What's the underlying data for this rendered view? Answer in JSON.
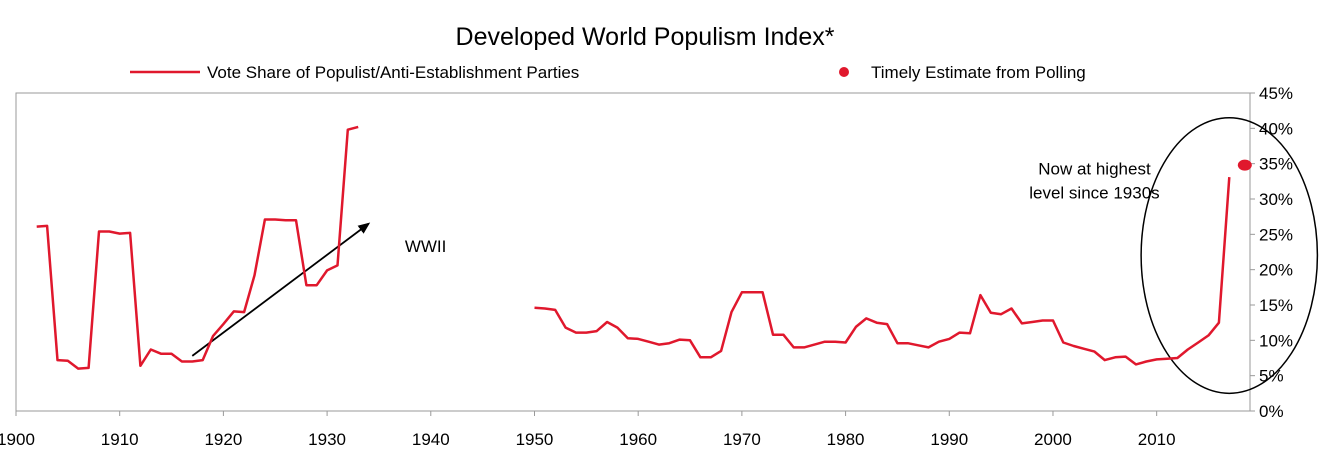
{
  "chart_data": {
    "type": "line",
    "title": "Developed World Populism Index*",
    "xlabel": "",
    "ylabel": "",
    "xlim": [
      1900,
      2019
    ],
    "ylim": [
      0,
      45
    ],
    "x_ticks": [
      "1900",
      "1910",
      "1920",
      "1930",
      "1940",
      "1950",
      "1960",
      "1970",
      "1980",
      "1990",
      "2000",
      "2010"
    ],
    "x_tick_values": [
      1900,
      1910,
      1920,
      1930,
      1940,
      1950,
      1960,
      1970,
      1980,
      1990,
      2000,
      2010
    ],
    "y_ticks": [
      "0%",
      "5%",
      "10%",
      "15%",
      "20%",
      "25%",
      "30%",
      "35%",
      "40%",
      "45%"
    ],
    "y_tick_values": [
      0,
      5,
      10,
      15,
      20,
      25,
      30,
      35,
      40,
      45
    ],
    "grid": false,
    "legend_position": "top",
    "series": [
      {
        "name": "Vote Share of Populist/Anti-Establishment Parties",
        "color": "#e0182d",
        "segments": [
          [
            [
              1902,
              26.1
            ],
            [
              1903,
              26.2
            ],
            [
              1904,
              7.2
            ],
            [
              1905,
              7.1
            ],
            [
              1906,
              6.0
            ],
            [
              1907,
              6.1
            ],
            [
              1908,
              25.4
            ],
            [
              1909,
              25.4
            ],
            [
              1910,
              25.1
            ],
            [
              1911,
              25.2
            ],
            [
              1912,
              6.4
            ],
            [
              1913,
              8.7
            ],
            [
              1914,
              8.1
            ],
            [
              1915,
              8.1
            ],
            [
              1916,
              7.0
            ],
            [
              1917,
              7.0
            ],
            [
              1918,
              7.2
            ],
            [
              1919,
              10.6
            ],
            [
              1920,
              12.3
            ],
            [
              1921,
              14.1
            ],
            [
              1922,
              14.0
            ],
            [
              1923,
              19.2
            ],
            [
              1924,
              27.1
            ],
            [
              1925,
              27.1
            ],
            [
              1926,
              27.0
            ],
            [
              1927,
              27.0
            ],
            [
              1928,
              17.8
            ],
            [
              1929,
              17.8
            ],
            [
              1930,
              19.9
            ],
            [
              1931,
              20.6
            ],
            [
              1932,
              39.8
            ],
            [
              1933,
              40.2
            ]
          ],
          [
            [
              1950,
              14.6
            ],
            [
              1951,
              14.5
            ],
            [
              1952,
              14.3
            ],
            [
              1953,
              11.8
            ],
            [
              1954,
              11.1
            ],
            [
              1955,
              11.1
            ],
            [
              1956,
              11.3
            ],
            [
              1957,
              12.6
            ],
            [
              1958,
              11.8
            ],
            [
              1959,
              10.3
            ],
            [
              1960,
              10.2
            ],
            [
              1961,
              9.8
            ],
            [
              1962,
              9.4
            ],
            [
              1963,
              9.6
            ],
            [
              1964,
              10.1
            ],
            [
              1965,
              10.0
            ],
            [
              1966,
              7.6
            ],
            [
              1967,
              7.6
            ],
            [
              1968,
              8.5
            ],
            [
              1969,
              14.0
            ],
            [
              1970,
              16.8
            ],
            [
              1971,
              16.8
            ],
            [
              1972,
              16.8
            ],
            [
              1973,
              10.8
            ],
            [
              1974,
              10.8
            ],
            [
              1975,
              9.0
            ],
            [
              1976,
              9.0
            ],
            [
              1977,
              9.4
            ],
            [
              1978,
              9.8
            ],
            [
              1979,
              9.8
            ],
            [
              1980,
              9.7
            ],
            [
              1981,
              11.9
            ],
            [
              1982,
              13.1
            ],
            [
              1983,
              12.5
            ],
            [
              1984,
              12.3
            ],
            [
              1985,
              9.6
            ],
            [
              1986,
              9.6
            ],
            [
              1987,
              9.3
            ],
            [
              1988,
              9.0
            ],
            [
              1989,
              9.8
            ],
            [
              1990,
              10.2
            ],
            [
              1991,
              11.1
            ],
            [
              1992,
              11.0
            ],
            [
              1993,
              16.4
            ],
            [
              1994,
              13.9
            ],
            [
              1995,
              13.7
            ],
            [
              1996,
              14.5
            ],
            [
              1997,
              12.4
            ],
            [
              1998,
              12.6
            ],
            [
              1999,
              12.8
            ],
            [
              2000,
              12.8
            ],
            [
              2001,
              9.7
            ],
            [
              2002,
              9.2
            ],
            [
              2003,
              8.8
            ],
            [
              2004,
              8.4
            ],
            [
              2005,
              7.2
            ],
            [
              2006,
              7.6
            ],
            [
              2007,
              7.7
            ],
            [
              2008,
              6.6
            ],
            [
              2009,
              7.0
            ],
            [
              2010,
              7.3
            ],
            [
              2011,
              7.4
            ],
            [
              2012,
              7.5
            ],
            [
              2013,
              8.7
            ],
            [
              2014,
              9.7
            ],
            [
              2015,
              10.7
            ],
            [
              2016,
              12.5
            ],
            [
              2017,
              33.1
            ]
          ]
        ]
      },
      {
        "name": "Timely Estimate from Polling",
        "color": "#e0182d",
        "marker": "dot",
        "points": [
          [
            2018.5,
            34.8
          ]
        ]
      }
    ],
    "annotations": {
      "arrow": {
        "from": [
          1917,
          7.8
        ],
        "to": [
          1934,
          26.5
        ]
      },
      "wwii_label": "WWII",
      "wwii_label_at": [
        1939.5,
        22.5
      ],
      "highlight_label": [
        "Now at highest",
        "level since 1930s"
      ],
      "highlight_label_at": [
        2004,
        33.5
      ],
      "ellipse": {
        "center": [
          2017,
          22
        ],
        "rx_years": 8.5,
        "ry_pct": 19.5
      }
    }
  }
}
